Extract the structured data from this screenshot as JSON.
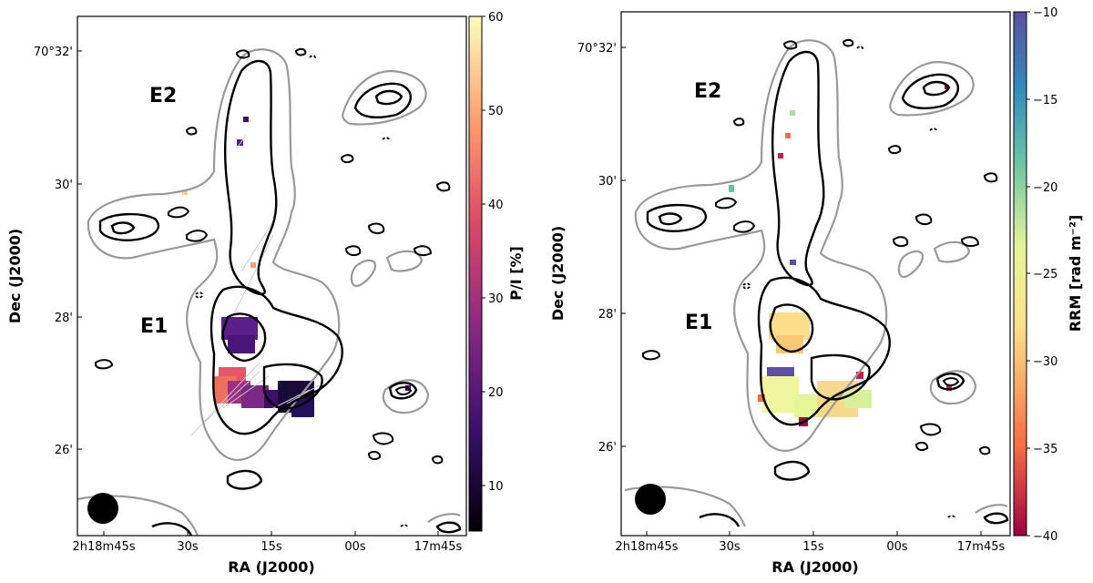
{
  "panels": [
    {
      "id": "polarization",
      "xlabel": "RA (J2000)",
      "ylabel": "Dec (J2000)",
      "x_ticks": [
        "2h18m45s",
        "30s",
        "15s",
        "00s",
        "17m45s"
      ],
      "y_ticks": [
        "70°32'",
        "30'",
        "28'",
        "26'"
      ],
      "regions": [
        "E2",
        "E1"
      ],
      "colorbar": {
        "label": "P/I [%]",
        "ticks": [
          "60",
          "50",
          "40",
          "30",
          "20",
          "10"
        ],
        "range": [
          5,
          60
        ],
        "colormap": "magma",
        "colors": [
          "#000004",
          "#3b0f70",
          "#8c2981",
          "#de4968",
          "#fe9f6d",
          "#fcfdbf"
        ]
      }
    },
    {
      "id": "rrm",
      "xlabel": "RA (J2000)",
      "ylabel": "Dec (J2000)",
      "x_ticks": [
        "2h18m45s",
        "30s",
        "15s",
        "00s",
        "17m45s"
      ],
      "y_ticks": [
        "70°32'",
        "30'",
        "28'",
        "26'"
      ],
      "regions": [
        "E2",
        "E1"
      ],
      "colorbar": {
        "label": "RRM [rad m⁻²]",
        "ticks": [
          "−10",
          "−15",
          "−20",
          "−25",
          "−30",
          "−35",
          "−40"
        ],
        "range": [
          -40,
          -10
        ],
        "colormap": "spectral",
        "colors": [
          "#9e0142",
          "#f46d43",
          "#fee08b",
          "#e6f598",
          "#66c2a5",
          "#3288bd",
          "#5e4fa2"
        ]
      }
    }
  ],
  "contour_colors": {
    "outer": "#999999",
    "inner": "#000000"
  }
}
